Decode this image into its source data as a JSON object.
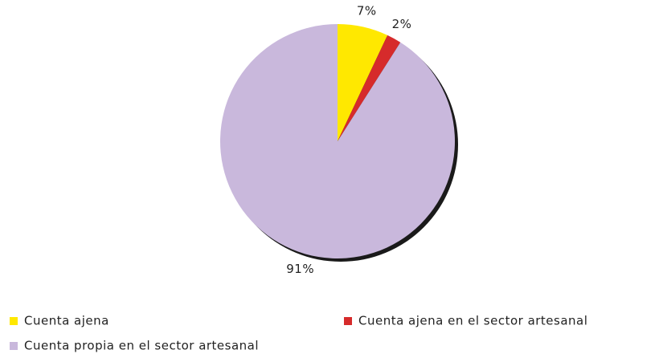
{
  "chart_data": {
    "type": "pie",
    "categories": [
      "Cuenta ajena",
      "Cuenta ajena en el sector artesanal",
      "Cuenta propia en el sector artesanal"
    ],
    "values": [
      7,
      2,
      91
    ],
    "value_labels": [
      "7%",
      "2%",
      "91%"
    ],
    "colors": [
      "#ffe800",
      "#d62b2b",
      "#c9b8dc"
    ]
  }
}
